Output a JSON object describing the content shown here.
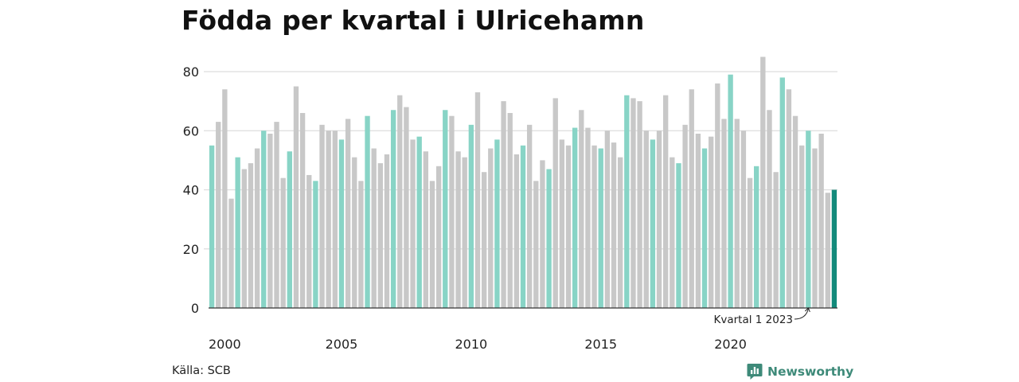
{
  "colors": {
    "accent_q1": "#88d4c6",
    "regular": "#c8c8c8",
    "highlight": "#138a7b",
    "grid": "#dddddd",
    "axis": "#333333",
    "brand": "#3e8a79"
  },
  "chart_data": {
    "type": "bar",
    "title": "Födda per kvartal i Ulricehamn",
    "source": "Källa: SCB",
    "brand": "Newsworthy",
    "xlabel": "",
    "ylabel": "",
    "ylim": [
      0,
      85
    ],
    "yticks": [
      0,
      20,
      40,
      60,
      80
    ],
    "grid": true,
    "x_tick_labels": [
      "2000",
      "2005",
      "2010",
      "2015",
      "2020"
    ],
    "annotation": {
      "text": "Kvartal 1 2023",
      "target": "2023 Q1"
    },
    "start": "2000 Q1",
    "end": "2024 Q1",
    "values": [
      55,
      63,
      74,
      37,
      51,
      47,
      49,
      54,
      60,
      59,
      63,
      44,
      53,
      75,
      66,
      45,
      43,
      62,
      60,
      60,
      57,
      64,
      51,
      43,
      65,
      54,
      49,
      52,
      67,
      72,
      68,
      57,
      58,
      53,
      43,
      48,
      67,
      65,
      53,
      51,
      62,
      73,
      46,
      54,
      57,
      70,
      66,
      52,
      55,
      62,
      43,
      50,
      47,
      71,
      57,
      55,
      61,
      67,
      61,
      55,
      54,
      60,
      56,
      51,
      72,
      71,
      70,
      60,
      57,
      60,
      72,
      51,
      49,
      62,
      74,
      59,
      54,
      58,
      76,
      64,
      79,
      64,
      60,
      44,
      48,
      85,
      67,
      46,
      78,
      74,
      65,
      55,
      60,
      54,
      59,
      39,
      40
    ],
    "highlight_last": true
  }
}
